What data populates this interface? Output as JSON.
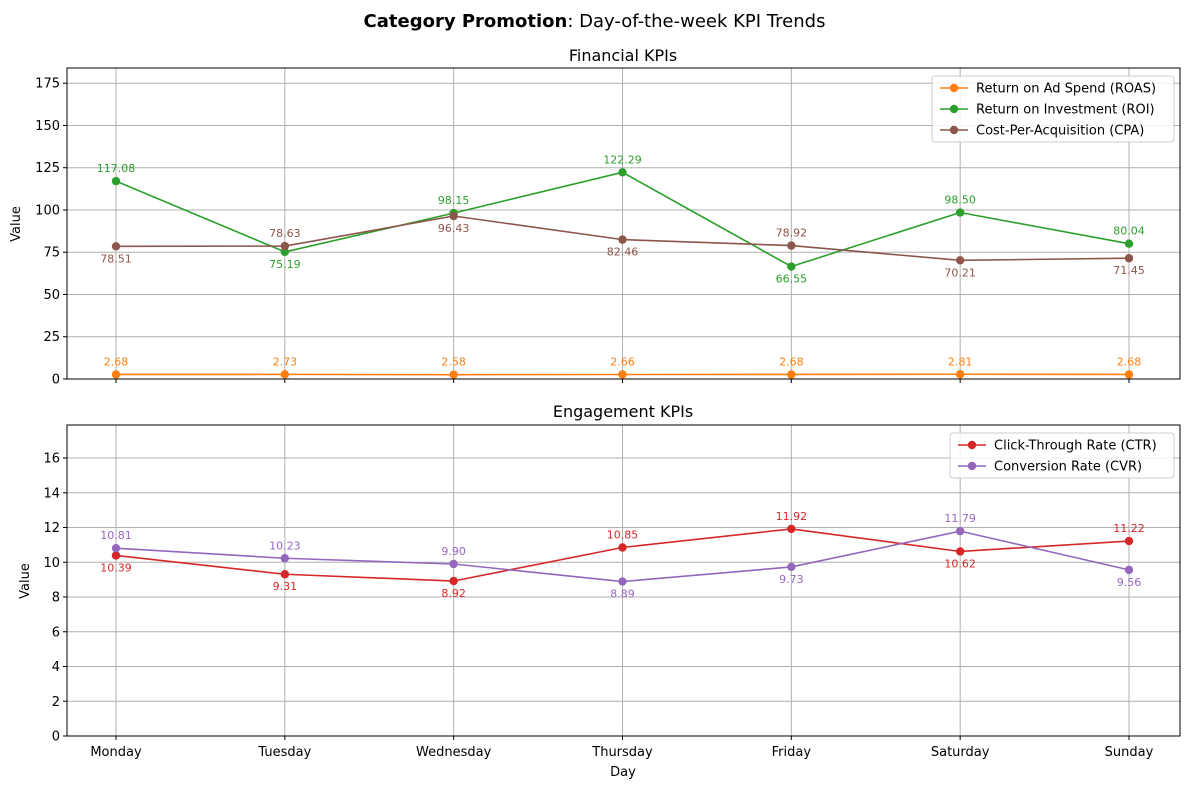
{
  "figure": {
    "title_bold": "Category Promotion",
    "title_rest": ": Day-of-the-week KPI Trends"
  },
  "chart_data": [
    {
      "type": "line",
      "title": "Financial KPIs",
      "xlabel": "",
      "ylabel": "Value",
      "categories": [
        "Monday",
        "Tuesday",
        "Wednesday",
        "Thursday",
        "Friday",
        "Saturday",
        "Sunday"
      ],
      "ylim": [
        0,
        184
      ],
      "yticks": [
        0,
        25,
        50,
        75,
        100,
        125,
        150,
        175
      ],
      "grid": true,
      "legend": "upper right",
      "series": [
        {
          "name": "Return on Ad Spend (ROAS)",
          "color": "#ff7f0e",
          "values": [
            2.68,
            2.73,
            2.58,
            2.66,
            2.68,
            2.81,
            2.68
          ],
          "label_pos": "above"
        },
        {
          "name": "Return on Investment (ROI)",
          "color": "#2ca02c",
          "values": [
            117.08,
            75.19,
            98.15,
            122.29,
            66.55,
            98.5,
            80.04
          ],
          "label_pos": "auto"
        },
        {
          "name": "Cost-Per-Acquisition (CPA)",
          "color": "#8c564b",
          "values": [
            78.51,
            78.63,
            96.43,
            82.46,
            78.92,
            70.21,
            71.45
          ],
          "label_pos": "auto"
        }
      ]
    },
    {
      "type": "line",
      "title": "Engagement KPIs",
      "xlabel": "Day",
      "ylabel": "Value",
      "categories": [
        "Monday",
        "Tuesday",
        "Wednesday",
        "Thursday",
        "Friday",
        "Saturday",
        "Sunday"
      ],
      "ylim": [
        0,
        17.9
      ],
      "yticks": [
        0,
        2,
        4,
        6,
        8,
        10,
        12,
        14,
        16
      ],
      "grid": true,
      "legend": "upper right",
      "series": [
        {
          "name": "Click-Through Rate (CTR)",
          "color": "#d62728",
          "values": [
            10.39,
            9.31,
            8.92,
            10.85,
            11.92,
            10.62,
            11.22
          ],
          "label_pos": "auto"
        },
        {
          "name": "Conversion Rate (CVR)",
          "color": "#9467bd",
          "values": [
            10.81,
            10.23,
            9.9,
            8.89,
            9.73,
            11.79,
            9.56
          ],
          "label_pos": "auto"
        }
      ]
    }
  ]
}
